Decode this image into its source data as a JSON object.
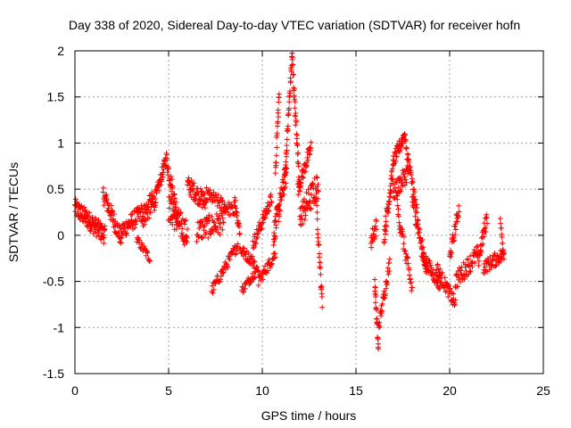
{
  "chart_data": {
    "type": "scatter",
    "title": "Day 338 of 2020, Sidereal Day-to-day VTEC variation (SDTVAR) for receiver hofn",
    "xlabel": "GPS time / hours",
    "ylabel": "SDTVAR / TECUs",
    "xlim": [
      0,
      25
    ],
    "ylim": [
      -1.5,
      2
    ],
    "x_ticks": [
      "0",
      "5",
      "10",
      "15",
      "20",
      "25"
    ],
    "y_ticks": [
      "-1.5",
      "-1",
      "-0.5",
      "0",
      "0.5",
      "1",
      "1.5",
      "2"
    ],
    "grid": true,
    "marker": "+",
    "series": [
      {
        "name": "SDTVAR",
        "color": "#ff0000",
        "trend": [
          {
            "x0": 0.0,
            "y0": 0.3,
            "x1": 0.8,
            "y1": 0.15,
            "spread": 0.2,
            "n": 60
          },
          {
            "x0": 0.8,
            "y0": 0.15,
            "x1": 1.6,
            "y1": 0.0,
            "spread": 0.2,
            "n": 60
          },
          {
            "x0": 1.5,
            "y0": 0.45,
            "x1": 2.5,
            "y1": -0.05,
            "spread": 0.2,
            "n": 60
          },
          {
            "x0": 2.5,
            "y0": 0.05,
            "x1": 3.6,
            "y1": 0.25,
            "spread": 0.2,
            "n": 60
          },
          {
            "x0": 3.3,
            "y0": -0.05,
            "x1": 4.0,
            "y1": -0.25,
            "spread": 0.1,
            "n": 25
          },
          {
            "x0": 3.6,
            "y0": 0.2,
            "x1": 4.3,
            "y1": 0.4,
            "spread": 0.25,
            "n": 50
          },
          {
            "x0": 4.3,
            "y0": 0.4,
            "x1": 4.9,
            "y1": 0.85,
            "spread": 0.15,
            "n": 40
          },
          {
            "x0": 4.9,
            "y0": 0.8,
            "x1": 5.5,
            "y1": 0.2,
            "spread": 0.2,
            "n": 40
          },
          {
            "x0": 5.0,
            "y0": 0.3,
            "x1": 6.0,
            "y1": 0.0,
            "spread": 0.3,
            "n": 70
          },
          {
            "x0": 6.0,
            "y0": 0.55,
            "x1": 7.0,
            "y1": 0.35,
            "spread": 0.2,
            "n": 60
          },
          {
            "x0": 6.5,
            "y0": 0.05,
            "x1": 8.0,
            "y1": 0.15,
            "spread": 0.25,
            "n": 70
          },
          {
            "x0": 7.0,
            "y0": 0.45,
            "x1": 8.5,
            "y1": 0.25,
            "spread": 0.15,
            "n": 60
          },
          {
            "x0": 7.3,
            "y0": -0.6,
            "x1": 8.7,
            "y1": -0.1,
            "spread": 0.12,
            "n": 50
          },
          {
            "x0": 8.5,
            "y0": 0.4,
            "x1": 8.8,
            "y1": 0.05,
            "spread": 0.15,
            "n": 20
          },
          {
            "x0": 8.8,
            "y0": -0.15,
            "x1": 9.6,
            "y1": -0.3,
            "spread": 0.12,
            "n": 35
          },
          {
            "x0": 8.9,
            "y0": -0.6,
            "x1": 9.8,
            "y1": -0.35,
            "spread": 0.1,
            "n": 35
          },
          {
            "x0": 9.5,
            "y0": -0.1,
            "x1": 10.5,
            "y1": 0.4,
            "spread": 0.15,
            "n": 50
          },
          {
            "x0": 9.8,
            "y0": -0.5,
            "x1": 10.7,
            "y1": -0.2,
            "spread": 0.12,
            "n": 40
          },
          {
            "x0": 10.6,
            "y0": 0.0,
            "x1": 11.3,
            "y1": 0.7,
            "spread": 0.25,
            "n": 60
          },
          {
            "x0": 10.7,
            "y0": 0.7,
            "x1": 10.9,
            "y1": 1.55,
            "spread": 0.2,
            "n": 20
          },
          {
            "x0": 11.2,
            "y0": 0.6,
            "x1": 11.6,
            "y1": 2.0,
            "spread": 0.15,
            "n": 40
          },
          {
            "x0": 11.6,
            "y0": 1.9,
            "x1": 12.0,
            "y1": 0.5,
            "spread": 0.2,
            "n": 40
          },
          {
            "x0": 11.9,
            "y0": 0.5,
            "x1": 12.6,
            "y1": 0.95,
            "spread": 0.15,
            "n": 40
          },
          {
            "x0": 12.0,
            "y0": 0.2,
            "x1": 13.0,
            "y1": 0.55,
            "spread": 0.3,
            "n": 60
          },
          {
            "x0": 12.9,
            "y0": 0.3,
            "x1": 13.2,
            "y1": -0.75,
            "spread": 0.15,
            "n": 25
          },
          {
            "x0": 15.8,
            "y0": -0.05,
            "x1": 16.1,
            "y1": 0.1,
            "spread": 0.2,
            "n": 20
          },
          {
            "x0": 16.0,
            "y0": -0.5,
            "x1": 16.2,
            "y1": -1.25,
            "spread": 0.15,
            "n": 25
          },
          {
            "x0": 16.2,
            "y0": -1.0,
            "x1": 16.8,
            "y1": -0.3,
            "spread": 0.15,
            "n": 35
          },
          {
            "x0": 16.5,
            "y0": 0.0,
            "x1": 17.0,
            "y1": 0.75,
            "spread": 0.2,
            "n": 45
          },
          {
            "x0": 17.0,
            "y0": 0.8,
            "x1": 17.6,
            "y1": 1.1,
            "spread": 0.15,
            "n": 40
          },
          {
            "x0": 17.0,
            "y0": 0.45,
            "x1": 17.8,
            "y1": 0.7,
            "spread": 0.2,
            "n": 45
          },
          {
            "x0": 17.6,
            "y0": 1.05,
            "x1": 18.3,
            "y1": 0.2,
            "spread": 0.15,
            "n": 40
          },
          {
            "x0": 17.2,
            "y0": 0.3,
            "x1": 18.0,
            "y1": -0.6,
            "spread": 0.2,
            "n": 40
          },
          {
            "x0": 18.0,
            "y0": 0.4,
            "x1": 18.8,
            "y1": -0.4,
            "spread": 0.2,
            "n": 45
          },
          {
            "x0": 18.5,
            "y0": -0.2,
            "x1": 19.5,
            "y1": -0.55,
            "spread": 0.15,
            "n": 50
          },
          {
            "x0": 19.3,
            "y0": -0.35,
            "x1": 20.3,
            "y1": -0.75,
            "spread": 0.15,
            "n": 50
          },
          {
            "x0": 20.0,
            "y0": -0.25,
            "x1": 20.5,
            "y1": 0.3,
            "spread": 0.15,
            "n": 30
          },
          {
            "x0": 20.3,
            "y0": -0.5,
            "x1": 21.5,
            "y1": -0.2,
            "spread": 0.2,
            "n": 55
          },
          {
            "x0": 21.5,
            "y0": -0.3,
            "x1": 22.0,
            "y1": 0.2,
            "spread": 0.2,
            "n": 30
          },
          {
            "x0": 21.8,
            "y0": -0.35,
            "x1": 22.9,
            "y1": -0.2,
            "spread": 0.15,
            "n": 50
          },
          {
            "x0": 22.7,
            "y0": 0.2,
            "x1": 22.9,
            "y1": -0.25,
            "spread": 0.1,
            "n": 12
          }
        ]
      }
    ]
  }
}
